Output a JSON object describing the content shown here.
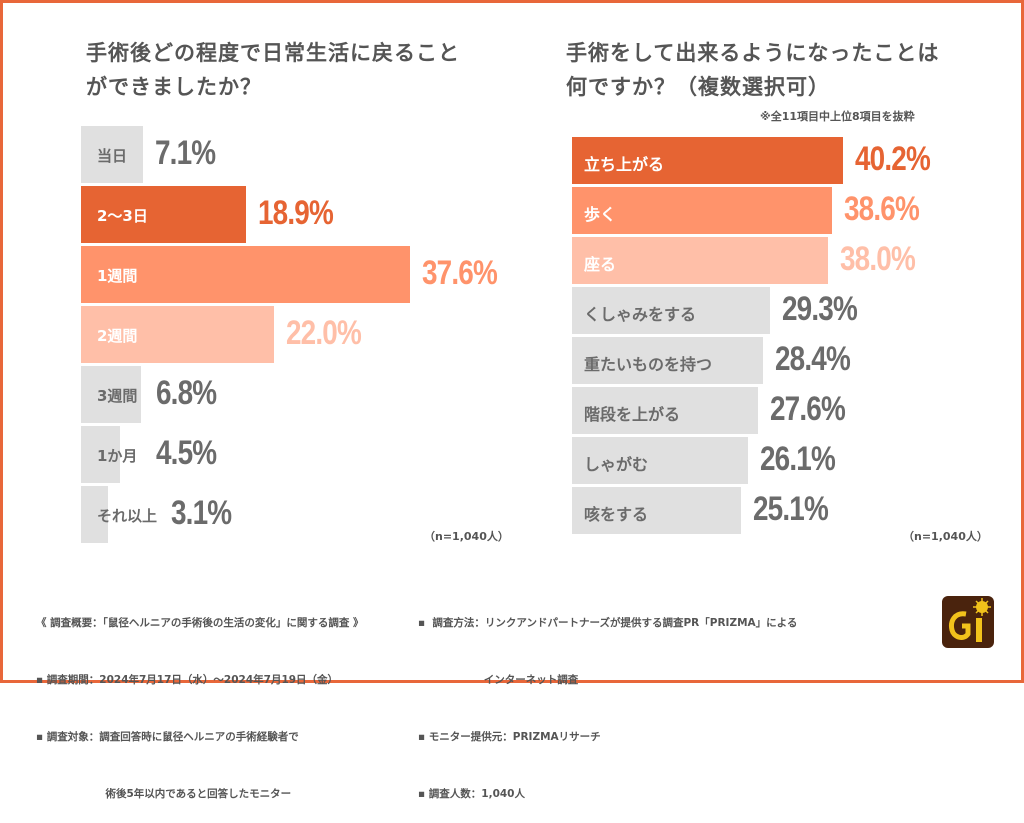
{
  "colors": {
    "border": "#e8673a",
    "dark_orange": "#e66433",
    "mid_orange": "#ff936b",
    "light_orange": "#ffbfa8",
    "gray_bar": "#e0e0e0",
    "gray_text": "#6b6b6b",
    "title_text": "#555555"
  },
  "chart_data": [
    {
      "type": "bar",
      "orientation": "horizontal",
      "title": "手術後どの程度で日常生活に戻ることができましたか？",
      "categories": [
        "当日",
        "2〜3日",
        "1週間",
        "2週間",
        "3週間",
        "1か月",
        "それ以上"
      ],
      "values": [
        7.1,
        18.9,
        37.6,
        22.0,
        6.8,
        4.5,
        3.1
      ],
      "value_labels": [
        "7.1%",
        "18.9%",
        "37.6%",
        "22.0%",
        "6.8%",
        "4.5%",
        "3.1%"
      ],
      "styles": [
        "gray",
        "dark",
        "mid",
        "light",
        "gray",
        "gray",
        "gray"
      ],
      "unit": "%",
      "sample_note": "（n=1,040人）",
      "xlim": [
        0,
        40
      ]
    },
    {
      "type": "bar",
      "orientation": "horizontal",
      "title": "手術をして出来るようになったことは何ですか？（複数選択可）",
      "subtitle": "※全11項目中上位8項目を抜粋",
      "categories": [
        "立ち上がる",
        "歩く",
        "座る",
        "くしゃみをする",
        "重たいものを持つ",
        "階段を上がる",
        "しゃがむ",
        "咳をする"
      ],
      "values": [
        40.2,
        38.6,
        38.0,
        29.3,
        28.4,
        27.6,
        26.1,
        25.1
      ],
      "value_labels": [
        "40.2%",
        "38.6%",
        "38.0%",
        "29.3%",
        "28.4%",
        "27.6%",
        "26.1%",
        "25.1%"
      ],
      "styles": [
        "dark",
        "mid",
        "light",
        "gray",
        "gray",
        "gray",
        "gray",
        "gray"
      ],
      "unit": "%",
      "sample_note": "（n=1,040人）",
      "xlim": [
        0,
        40.2
      ]
    }
  ],
  "titles": {
    "left": "手術後どの程度で日常生活に戻ること\nができましたか？",
    "right": "手術をして出来るようになったことは\n何ですか？（複数選択可）",
    "right_note": "※全11項目中上位8項目を抜粋"
  },
  "footer": {
    "left": [
      "《 調査概要：「鼠径ヘルニアの手術後の生活の変化」に関する調査 》",
      "▪ 調査期間：2024年7月17日（水）〜2024年7月19日（金）",
      "▪ 調査対象：調査回答時に鼠径ヘルニアの手術経験者で",
      "                   術後5年以内であると回答したモニター"
    ],
    "right": [
      "▪  調査方法：リンクアンドパートナーズが提供する調査PR「PRIZMA」による",
      "                  インターネット調査",
      "▪ モニター提供元：PRIZMAリサーチ",
      "▪ 調査人数：1,040人"
    ]
  },
  "logo": {
    "icon": "gi-logo-icon"
  }
}
